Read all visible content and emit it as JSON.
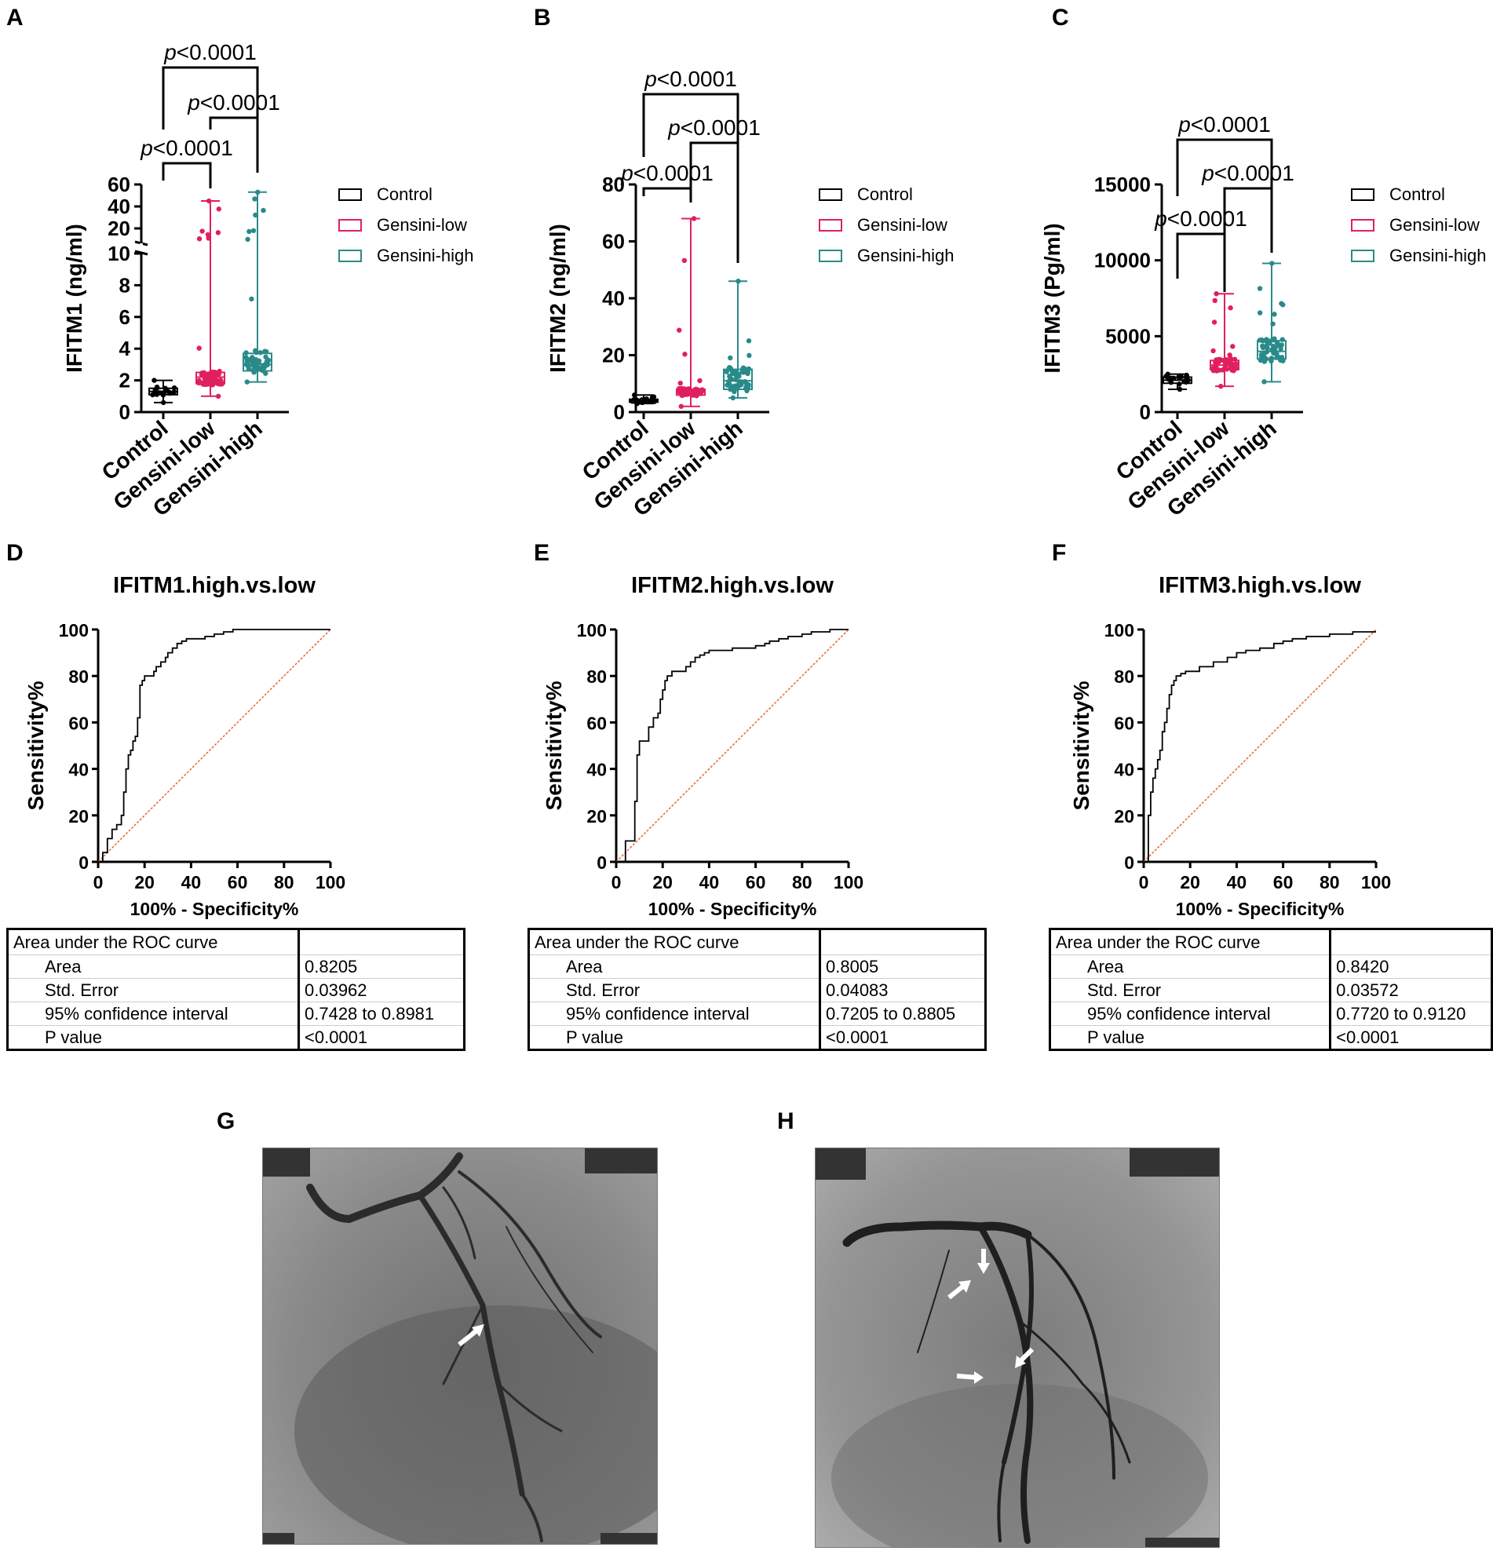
{
  "panel_labels": {
    "A": "A",
    "B": "B",
    "C": "C",
    "D": "D",
    "E": "E",
    "F": "F",
    "G": "G",
    "H": "H"
  },
  "legend": {
    "items": [
      {
        "label": "Control",
        "color": "#000000"
      },
      {
        "label": "Gensini-low",
        "color": "#e0205e"
      },
      {
        "label": "Gensini-high",
        "color": "#2a8a8a"
      }
    ]
  },
  "colors": {
    "control": "#000000",
    "low": "#e0205e",
    "high": "#2a8a8a",
    "diagonal": "#e8643a"
  },
  "chart_data": [
    {
      "id": "A",
      "type": "scatter",
      "ylabel": "IFITM1 (ng/ml)",
      "categories": [
        "Control",
        "Gensini-low",
        "Gensini-high"
      ],
      "y_axis": "broken",
      "ylim_lower": [
        0,
        10
      ],
      "ylim_upper": [
        10,
        60
      ],
      "yticks": [
        "0",
        "2",
        "4",
        "6",
        "8",
        "10",
        "20",
        "40",
        "60"
      ],
      "boxes": [
        {
          "group": "Control",
          "min": 0.6,
          "q1": 1.1,
          "median": 1.3,
          "q3": 1.5,
          "max": 2.0
        },
        {
          "group": "Gensini-low",
          "min": 1.0,
          "q1": 1.8,
          "median": 2.2,
          "q3": 2.5,
          "max": 45
        },
        {
          "group": "Gensini-high",
          "min": 1.9,
          "q1": 2.6,
          "median": 3.0,
          "q3": 3.7,
          "max": 53
        }
      ],
      "comparisons": [
        {
          "from": "Control",
          "to": "Gensini-high",
          "p": "<0.0001"
        },
        {
          "from": "Gensini-low",
          "to": "Gensini-high",
          "p": "<0.0001"
        },
        {
          "from": "Control",
          "to": "Gensini-low",
          "p": "<0.0001"
        }
      ]
    },
    {
      "id": "B",
      "type": "scatter",
      "ylabel": "IFITM2 (ng/ml)",
      "categories": [
        "Control",
        "Gensini-low",
        "Gensini-high"
      ],
      "ylim": [
        0,
        80
      ],
      "yticks": [
        "0",
        "20",
        "40",
        "60",
        "80"
      ],
      "boxes": [
        {
          "group": "Control",
          "min": 3,
          "q1": 3.5,
          "median": 4,
          "q3": 4.5,
          "max": 6
        },
        {
          "group": "Gensini-low",
          "min": 2,
          "q1": 6,
          "median": 7,
          "q3": 8,
          "max": 68
        },
        {
          "group": "Gensini-high",
          "min": 5,
          "q1": 8,
          "median": 11,
          "q3": 15,
          "max": 46
        }
      ],
      "comparisons": [
        {
          "from": "Control",
          "to": "Gensini-high",
          "p": "<0.0001"
        },
        {
          "from": "Gensini-low",
          "to": "Gensini-high",
          "p": "<0.0001"
        },
        {
          "from": "Control",
          "to": "Gensini-low",
          "p": "<0.0001"
        }
      ]
    },
    {
      "id": "C",
      "type": "scatter",
      "ylabel": "IFITM3 (Pg/ml)",
      "categories": [
        "Control",
        "Gensini-low",
        "Gensini-high"
      ],
      "ylim": [
        0,
        15000
      ],
      "yticks": [
        "0",
        "5000",
        "10000",
        "15000"
      ],
      "boxes": [
        {
          "group": "Control",
          "min": 1500,
          "q1": 1900,
          "median": 2100,
          "q3": 2300,
          "max": 2500
        },
        {
          "group": "Gensini-low",
          "min": 1700,
          "q1": 2800,
          "median": 3100,
          "q3": 3400,
          "max": 7800
        },
        {
          "group": "Gensini-high",
          "min": 2000,
          "q1": 3500,
          "median": 4000,
          "q3": 4700,
          "max": 9800
        }
      ],
      "comparisons": [
        {
          "from": "Control",
          "to": "Gensini-high",
          "p": "<0.0001"
        },
        {
          "from": "Gensini-low",
          "to": "Gensini-high",
          "p": "<0.0001"
        },
        {
          "from": "Control",
          "to": "Gensini-low",
          "p": "<0.0001"
        }
      ]
    },
    {
      "id": "D",
      "type": "line",
      "title": "IFITM1.high.vs.low",
      "xlabel": "100% - Specificity%",
      "ylabel": "Sensitivity%",
      "xlim": [
        0,
        100
      ],
      "ylim": [
        0,
        100
      ],
      "ticks": [
        "0",
        "20",
        "40",
        "60",
        "80",
        "100"
      ],
      "x": [
        0,
        2,
        2,
        4,
        4,
        6,
        6,
        8,
        8,
        10,
        10,
        11,
        11,
        12,
        12,
        13,
        13,
        14,
        14,
        15,
        15,
        16,
        16,
        17,
        17,
        18,
        18,
        19,
        19,
        20,
        20,
        24,
        24,
        25,
        25,
        27,
        27,
        29,
        29,
        30,
        30,
        32,
        32,
        34,
        34,
        36,
        36,
        38,
        38,
        42,
        42,
        46,
        46,
        50,
        50,
        54,
        54,
        58,
        58,
        62,
        62,
        100
      ],
      "y": [
        0,
        0,
        4,
        4,
        10,
        10,
        14,
        14,
        16,
        16,
        20,
        20,
        30,
        30,
        40,
        40,
        46,
        46,
        48,
        48,
        52,
        52,
        54,
        54,
        62,
        62,
        76,
        76,
        78,
        78,
        80,
        80,
        82,
        82,
        84,
        84,
        86,
        86,
        88,
        88,
        90,
        90,
        92,
        92,
        94,
        94,
        95,
        95,
        96,
        96,
        96,
        96,
        97,
        97,
        98,
        98,
        99,
        99,
        100,
        100,
        100,
        100
      ]
    },
    {
      "id": "E",
      "type": "line",
      "title": "IFITM2.high.vs.low",
      "xlabel": "100% - Specificity%",
      "ylabel": "Sensitivity%",
      "xlim": [
        0,
        100
      ],
      "ylim": [
        0,
        100
      ],
      "ticks": [
        "0",
        "20",
        "40",
        "60",
        "80",
        "100"
      ],
      "x": [
        0,
        4,
        4,
        8,
        8,
        9,
        9,
        10,
        10,
        14,
        14,
        16,
        16,
        18,
        18,
        19,
        19,
        20,
        20,
        21,
        21,
        22,
        22,
        24,
        24,
        30,
        30,
        32,
        32,
        34,
        34,
        36,
        36,
        38,
        38,
        40,
        40,
        50,
        50,
        60,
        60,
        64,
        64,
        66,
        66,
        70,
        70,
        74,
        74,
        80,
        80,
        84,
        84,
        88,
        88,
        92,
        92,
        100
      ],
      "y": [
        0,
        0,
        9,
        9,
        26,
        26,
        46,
        46,
        52,
        52,
        58,
        58,
        62,
        62,
        64,
        64,
        70,
        70,
        74,
        74,
        78,
        78,
        80,
        80,
        82,
        82,
        84,
        84,
        86,
        86,
        88,
        88,
        89,
        89,
        90,
        90,
        91,
        91,
        92,
        92,
        93,
        93,
        94,
        94,
        95,
        95,
        96,
        96,
        97,
        97,
        98,
        98,
        99,
        99,
        99,
        99,
        100,
        100
      ]
    },
    {
      "id": "F",
      "type": "line",
      "title": "IFITM3.high.vs.low",
      "xlabel": "100% - Specificity%",
      "ylabel": "Sensitivity%",
      "xlim": [
        0,
        100
      ],
      "ylim": [
        0,
        100
      ],
      "ticks": [
        "0",
        "20",
        "40",
        "60",
        "80",
        "100"
      ],
      "x": [
        0,
        2,
        2,
        3,
        3,
        4,
        4,
        5,
        5,
        6,
        6,
        7,
        7,
        8,
        8,
        9,
        9,
        10,
        10,
        11,
        11,
        12,
        12,
        13,
        13,
        14,
        14,
        16,
        16,
        18,
        18,
        24,
        24,
        30,
        30,
        36,
        36,
        40,
        40,
        44,
        44,
        50,
        50,
        56,
        56,
        60,
        60,
        64,
        64,
        70,
        70,
        80,
        80,
        90,
        90,
        100
      ],
      "y": [
        0,
        0,
        20,
        20,
        30,
        30,
        36,
        36,
        40,
        40,
        44,
        44,
        48,
        48,
        56,
        56,
        60,
        60,
        66,
        66,
        72,
        72,
        76,
        76,
        78,
        78,
        80,
        80,
        81,
        81,
        82,
        82,
        84,
        84,
        86,
        86,
        88,
        88,
        90,
        90,
        91,
        91,
        92,
        92,
        94,
        94,
        95,
        95,
        96,
        96,
        97,
        97,
        98,
        98,
        99,
        99
      ]
    }
  ],
  "roc_tables": [
    {
      "header": "Area under the ROC curve",
      "rows": [
        {
          "label": "Area",
          "value": "0.8205"
        },
        {
          "label": "Std. Error",
          "value": "0.03962"
        },
        {
          "label": "95% confidence interval",
          "value": "0.7428 to 0.8981"
        },
        {
          "label": "P value",
          "value": "<0.0001"
        }
      ]
    },
    {
      "header": "Area under the ROC curve",
      "rows": [
        {
          "label": "Area",
          "value": "0.8005"
        },
        {
          "label": "Std. Error",
          "value": "0.04083"
        },
        {
          "label": "95% confidence interval",
          "value": "0.7205 to 0.8805"
        },
        {
          "label": "P value",
          "value": "<0.0001"
        }
      ]
    },
    {
      "header": "Area under the ROC curve",
      "rows": [
        {
          "label": "Area",
          "value": "0.8420"
        },
        {
          "label": "Std. Error",
          "value": "0.03572"
        },
        {
          "label": "95% confidence interval",
          "value": "0.7720 to 0.9120"
        },
        {
          "label": "P value",
          "value": "<0.0001"
        }
      ]
    }
  ],
  "angiograms": [
    {
      "id": "G",
      "description_icon": "coronary-angiogram-image",
      "arrows": 1
    },
    {
      "id": "H",
      "description_icon": "coronary-angiogram-image",
      "arrows": 4
    }
  ]
}
